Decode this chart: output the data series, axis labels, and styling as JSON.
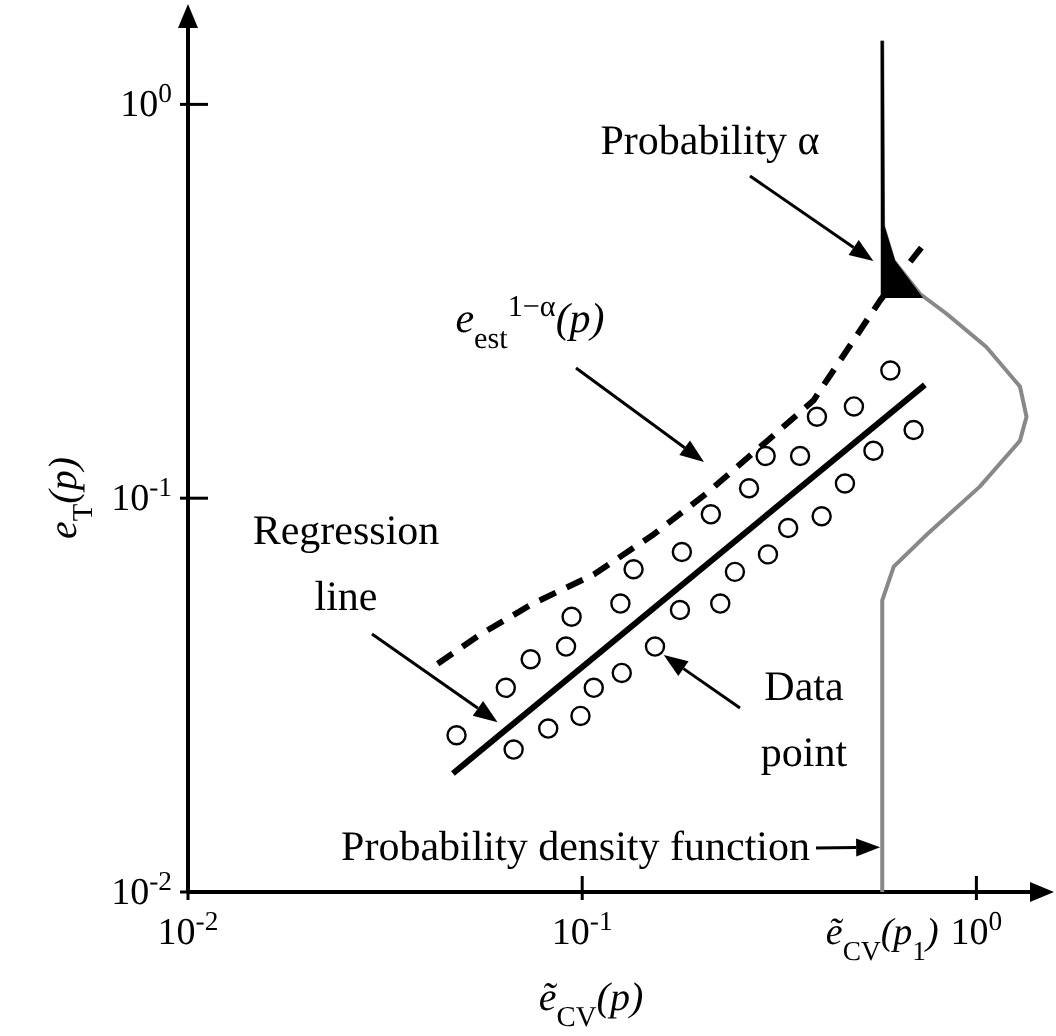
{
  "chart_data": {
    "type": "scatter",
    "log": "xy",
    "xlabel": "ẽ$_{CV}$(p)",
    "ylabel": "e$_{T}$(p)",
    "xlim": [
      0.01,
      1.4
    ],
    "ylim": [
      0.01,
      1.6
    ],
    "xticks": [
      {
        "value": 0.01,
        "label": "10$^{-2}$"
      },
      {
        "value": 0.1,
        "label": "10$^{-1}$"
      },
      {
        "value": 0.577,
        "label": "ẽ$_{CV}$(p$_{1}$)"
      },
      {
        "value": 1,
        "label": "10$^{0}$"
      }
    ],
    "yticks": [
      {
        "value": 0.01,
        "label": "10$^{-2}$"
      },
      {
        "value": 0.1,
        "label": "10$^{-1}$"
      },
      {
        "value": 1,
        "label": "10$^{0}$"
      }
    ],
    "series": [
      {
        "marker": "circle",
        "color": "#000000",
        "x": [
          0.048,
          0.067,
          0.064,
          0.082,
          0.099,
          0.074,
          0.091,
          0.107,
          0.126,
          0.094,
          0.125,
          0.153,
          0.135,
          0.177,
          0.224,
          0.179,
          0.244,
          0.212,
          0.296,
          0.265,
          0.333,
          0.405,
          0.292,
          0.357,
          0.464,
          0.394,
          0.489,
          0.548,
          0.605,
          0.693
        ],
        "values": [
          0.025,
          0.023,
          0.033,
          0.026,
          0.028,
          0.039,
          0.042,
          0.033,
          0.036,
          0.05,
          0.054,
          0.042,
          0.066,
          0.052,
          0.054,
          0.073,
          0.065,
          0.091,
          0.072,
          0.106,
          0.084,
          0.09,
          0.128,
          0.128,
          0.109,
          0.161,
          0.171,
          0.132,
          0.211,
          0.149
        ]
      },
      {
        "type": "line",
        "color": "#000000",
        "line_style": "solid",
        "x": [
          0.047,
          0.74
        ],
        "values": [
          0.02,
          0.194
        ]
      },
      {
        "type": "line",
        "color": "#000000",
        "line_style": "dashed",
        "x": [
          0.043,
          0.055,
          0.075,
          0.107,
          0.152,
          0.207,
          0.283,
          0.386,
          0.57,
          0.75
        ],
        "values": [
          0.038,
          0.045,
          0.054,
          0.064,
          0.081,
          0.103,
          0.135,
          0.177,
          0.318,
          0.452
        ]
      },
      {
        "type": "line",
        "color": "#888888",
        "line_style": "solid",
        "x": [
          0.577,
          0.577,
          0.617,
          0.75,
          1.02,
          1.29,
          1.34,
          1.29,
          1.06,
          0.84,
          0.72,
          0.617,
          0.58,
          0.577
        ],
        "values": [
          0.01,
          0.055,
          0.067,
          0.081,
          0.107,
          0.14,
          0.161,
          0.192,
          0.242,
          0.294,
          0.33,
          0.4,
          0.49,
          1.45
        ]
      },
      {
        "type": "area",
        "color": "#000000",
        "x": [
          0.577,
          0.72,
          0.617,
          0.58,
          0.577
        ],
        "values": [
          0.325,
          0.325,
          0.4,
          0.49,
          1.45
        ]
      }
    ],
    "annotations": [
      {
        "text": "Probability α",
        "x": 0.548,
        "y": 0.4
      },
      "e$_{est}$$^{1−α}$(p)",
      {
        "text": "Regression line",
        "x": 0.061,
        "y": 0.027
      },
      {
        "text": "Data point",
        "x": 0.161,
        "y": 0.04
      },
      {
        "text": "Probability density function",
        "x": 0.57,
        "y": 0.013
      }
    ]
  }
}
